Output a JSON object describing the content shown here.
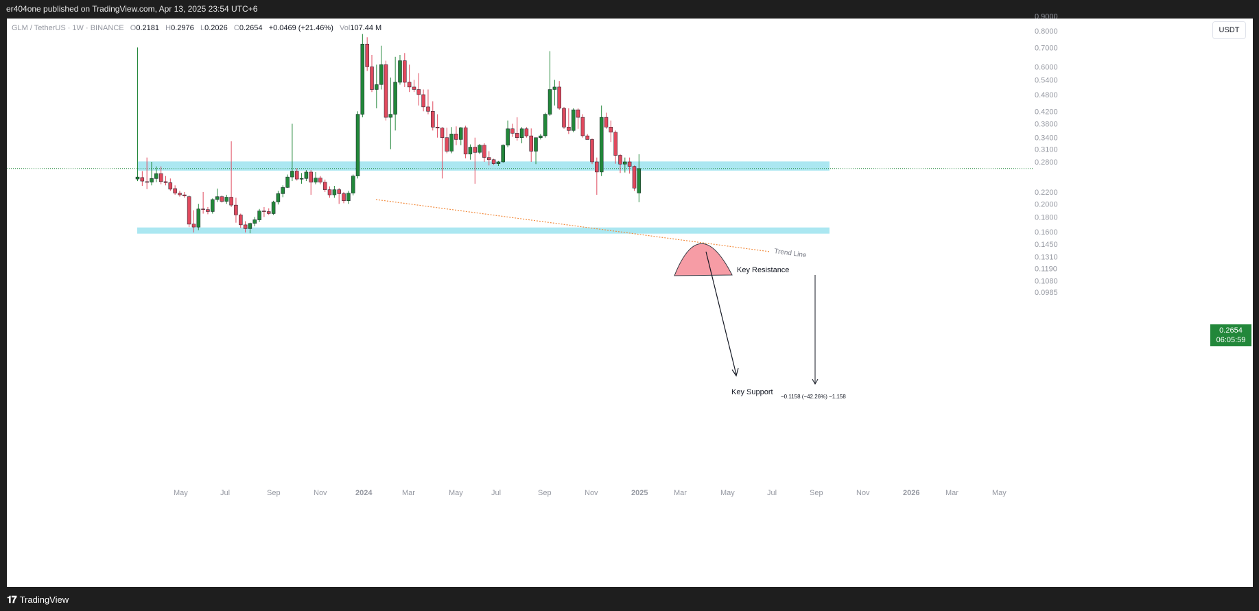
{
  "header": {
    "publisher_text": "er404one published on TradingView.com, Apr 13, 2025 23:54 UTC+6"
  },
  "legend": {
    "symbol": "GLM / TetherUS · 1W · BINANCE",
    "o_label": "O",
    "o_value": "0.2181",
    "h_label": "H",
    "h_value": "0.2976",
    "l_label": "L",
    "l_value": "0.2026",
    "c_label": "C",
    "c_value": "0.2654",
    "change": "+0.0469 (+21.46%)",
    "vol_label": "Vol",
    "vol_value": "107.44 M"
  },
  "currency_button": "USDT",
  "price_tag": {
    "price": "0.2654",
    "countdown": "06:05:59"
  },
  "footer": {
    "brand": "TradingView"
  },
  "annotations": {
    "trend_line": "Trend Line",
    "key_resistance": "Key Resistance",
    "key_support": "Key Support",
    "measure": "−0.1158 (−42.26%) −1,158"
  },
  "colors": {
    "up": "#22873a",
    "down": "#e0495d",
    "zone": "#a7e6f0",
    "trend": "#f28a3c",
    "dome": "#f58b96",
    "price_line": "#22873a"
  },
  "chart_data": {
    "type": "candlestick",
    "symbol": "GLM / TetherUS",
    "interval": "1W",
    "exchange": "BINANCE",
    "y_scale": "log",
    "y_ticks": [
      "0.9000",
      "0.8000",
      "0.7000",
      "0.6000",
      "0.5400",
      "0.4800",
      "0.4200",
      "0.3800",
      "0.3400",
      "0.3100",
      "0.2800",
      "0.2654",
      "0.2200",
      "0.2000",
      "0.1800",
      "0.1600",
      "0.1450",
      "0.1310",
      "0.1190",
      "0.1080",
      "0.0985"
    ],
    "x_ticks": [
      "May",
      "Jul",
      "Sep",
      "Nov",
      "2024",
      "Mar",
      "May",
      "Jul",
      "Sep",
      "Nov",
      "2025",
      "Mar",
      "May",
      "Jul",
      "Sep",
      "Nov",
      "2026",
      "Mar",
      "May"
    ],
    "last_price": 0.2654,
    "candles": [
      [
        0.244,
        0.7,
        0.24,
        0.248
      ],
      [
        0.247,
        0.26,
        0.231,
        0.24
      ],
      [
        0.239,
        0.29,
        0.225,
        0.238
      ],
      [
        0.238,
        0.28,
        0.232,
        0.245
      ],
      [
        0.245,
        0.27,
        0.238,
        0.255
      ],
      [
        0.255,
        0.27,
        0.234,
        0.239
      ],
      [
        0.239,
        0.25,
        0.232,
        0.237
      ],
      [
        0.237,
        0.245,
        0.222,
        0.225
      ],
      [
        0.226,
        0.232,
        0.215,
        0.218
      ],
      [
        0.218,
        0.222,
        0.212,
        0.215
      ],
      [
        0.215,
        0.22,
        0.21,
        0.213
      ],
      [
        0.212,
        0.214,
        0.166,
        0.17
      ],
      [
        0.17,
        0.19,
        0.159,
        0.166
      ],
      [
        0.166,
        0.2,
        0.162,
        0.192
      ],
      [
        0.192,
        0.22,
        0.185,
        0.191
      ],
      [
        0.191,
        0.195,
        0.184,
        0.188
      ],
      [
        0.188,
        0.209,
        0.185,
        0.207
      ],
      [
        0.207,
        0.226,
        0.203,
        0.212
      ],
      [
        0.212,
        0.214,
        0.202,
        0.204
      ],
      [
        0.204,
        0.215,
        0.2,
        0.211
      ],
      [
        0.211,
        0.33,
        0.195,
        0.198
      ],
      [
        0.198,
        0.21,
        0.172,
        0.183
      ],
      [
        0.183,
        0.185,
        0.165,
        0.169
      ],
      [
        0.169,
        0.174,
        0.159,
        0.164
      ],
      [
        0.164,
        0.172,
        0.158,
        0.171
      ],
      [
        0.171,
        0.18,
        0.167,
        0.176
      ],
      [
        0.176,
        0.192,
        0.173,
        0.189
      ],
      [
        0.189,
        0.195,
        0.18,
        0.188
      ],
      [
        0.188,
        0.193,
        0.183,
        0.185
      ],
      [
        0.185,
        0.205,
        0.183,
        0.203
      ],
      [
        0.203,
        0.222,
        0.199,
        0.217
      ],
      [
        0.217,
        0.232,
        0.211,
        0.228
      ],
      [
        0.228,
        0.253,
        0.227,
        0.248
      ],
      [
        0.248,
        0.38,
        0.24,
        0.26
      ],
      [
        0.26,
        0.266,
        0.241,
        0.244
      ],
      [
        0.244,
        0.256,
        0.235,
        0.245
      ],
      [
        0.245,
        0.262,
        0.24,
        0.258
      ],
      [
        0.258,
        0.262,
        0.215,
        0.238
      ],
      [
        0.238,
        0.258,
        0.234,
        0.246
      ],
      [
        0.246,
        0.25,
        0.234,
        0.238
      ],
      [
        0.238,
        0.243,
        0.22,
        0.224
      ],
      [
        0.224,
        0.23,
        0.21,
        0.215
      ],
      [
        0.215,
        0.231,
        0.21,
        0.224
      ],
      [
        0.224,
        0.227,
        0.2,
        0.217
      ],
      [
        0.217,
        0.22,
        0.201,
        0.205
      ],
      [
        0.205,
        0.222,
        0.2,
        0.218
      ],
      [
        0.218,
        0.253,
        0.214,
        0.25
      ],
      [
        0.25,
        0.42,
        0.245,
        0.41
      ],
      [
        0.41,
        0.78,
        0.4,
        0.72
      ],
      [
        0.72,
        0.76,
        0.58,
        0.6
      ],
      [
        0.6,
        0.66,
        0.49,
        0.5
      ],
      [
        0.5,
        0.61,
        0.43,
        0.52
      ],
      [
        0.52,
        0.71,
        0.5,
        0.61
      ],
      [
        0.61,
        0.63,
        0.39,
        0.4
      ],
      [
        0.4,
        0.55,
        0.31,
        0.41
      ],
      [
        0.41,
        0.65,
        0.36,
        0.53
      ],
      [
        0.53,
        0.66,
        0.52,
        0.63
      ],
      [
        0.63,
        0.67,
        0.51,
        0.53
      ],
      [
        0.53,
        0.61,
        0.49,
        0.51
      ],
      [
        0.51,
        0.54,
        0.49,
        0.5
      ],
      [
        0.5,
        0.57,
        0.44,
        0.48
      ],
      [
        0.48,
        0.5,
        0.42,
        0.435
      ],
      [
        0.435,
        0.5,
        0.41,
        0.42
      ],
      [
        0.42,
        0.455,
        0.36,
        0.37
      ],
      [
        0.37,
        0.41,
        0.34,
        0.367
      ],
      [
        0.367,
        0.37,
        0.245,
        0.34
      ],
      [
        0.34,
        0.368,
        0.3,
        0.305
      ],
      [
        0.305,
        0.37,
        0.3,
        0.35
      ],
      [
        0.35,
        0.372,
        0.32,
        0.335
      ],
      [
        0.335,
        0.37,
        0.32,
        0.368
      ],
      [
        0.368,
        0.374,
        0.288,
        0.298
      ],
      [
        0.298,
        0.322,
        0.285,
        0.315
      ],
      [
        0.315,
        0.34,
        0.235,
        0.302
      ],
      [
        0.302,
        0.323,
        0.298,
        0.32
      ],
      [
        0.32,
        0.325,
        0.28,
        0.29
      ],
      [
        0.29,
        0.305,
        0.272,
        0.285
      ],
      [
        0.285,
        0.287,
        0.273,
        0.276
      ],
      [
        0.276,
        0.282,
        0.271,
        0.28
      ],
      [
        0.28,
        0.322,
        0.278,
        0.32
      ],
      [
        0.32,
        0.39,
        0.315,
        0.365
      ],
      [
        0.365,
        0.38,
        0.342,
        0.352
      ],
      [
        0.352,
        0.4,
        0.332,
        0.34
      ],
      [
        0.34,
        0.37,
        0.325,
        0.365
      ],
      [
        0.365,
        0.37,
        0.34,
        0.345
      ],
      [
        0.345,
        0.366,
        0.28,
        0.305
      ],
      [
        0.305,
        0.34,
        0.275,
        0.34
      ],
      [
        0.34,
        0.35,
        0.335,
        0.345
      ],
      [
        0.345,
        0.415,
        0.34,
        0.41
      ],
      [
        0.41,
        0.68,
        0.405,
        0.5
      ],
      [
        0.5,
        0.54,
        0.44,
        0.51
      ],
      [
        0.51,
        0.535,
        0.425,
        0.43
      ],
      [
        0.43,
        0.435,
        0.365,
        0.37
      ],
      [
        0.37,
        0.43,
        0.35,
        0.36
      ],
      [
        0.36,
        0.43,
        0.355,
        0.425
      ],
      [
        0.425,
        0.43,
        0.365,
        0.4
      ],
      [
        0.4,
        0.41,
        0.34,
        0.345
      ],
      [
        0.345,
        0.35,
        0.34,
        0.335
      ],
      [
        0.335,
        0.338,
        0.275,
        0.28
      ],
      [
        0.28,
        0.29,
        0.215,
        0.258
      ],
      [
        0.258,
        0.44,
        0.25,
        0.4
      ],
      [
        0.4,
        0.415,
        0.365,
        0.37
      ],
      [
        0.37,
        0.39,
        0.328,
        0.355
      ],
      [
        0.355,
        0.36,
        0.276,
        0.295
      ],
      [
        0.295,
        0.298,
        0.256,
        0.275
      ],
      [
        0.275,
        0.29,
        0.257,
        0.28
      ],
      [
        0.28,
        0.29,
        0.255,
        0.27
      ],
      [
        0.27,
        0.272,
        0.222,
        0.227
      ],
      [
        0.2181,
        0.2976,
        0.2026,
        0.2654
      ]
    ]
  }
}
